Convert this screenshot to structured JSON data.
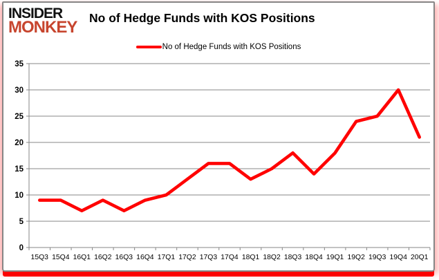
{
  "brand": {
    "line1": "INSIDER",
    "line2": "MONKEY"
  },
  "header": {
    "title": "No of Hedge Funds with KOS Positions"
  },
  "legend": {
    "label": "No of Hedge Funds with KOS Positions"
  },
  "chart_data": {
    "type": "line",
    "title": "No of Hedge Funds with KOS Positions",
    "categories": [
      "15Q3",
      "15Q4",
      "16Q1",
      "16Q2",
      "16Q3",
      "16Q4",
      "17Q1",
      "17Q2",
      "17Q3",
      "17Q4",
      "18Q1",
      "18Q2",
      "18Q3",
      "18Q4",
      "19Q1",
      "19Q2",
      "19Q3",
      "19Q4",
      "20Q1"
    ],
    "values": [
      9,
      9,
      7,
      9,
      7,
      9,
      10,
      13,
      16,
      16,
      13,
      15,
      18,
      14,
      18,
      24,
      25,
      30,
      21
    ],
    "xlabel": "",
    "ylabel": "",
    "ylim": [
      0,
      35
    ],
    "ytick_step": 5,
    "grid": true,
    "legend_position": "top",
    "legend_entries": [
      "No of Hedge Funds with KOS Positions"
    ]
  },
  "colors": {
    "series_line": "#ff0000",
    "gridline": "#878787",
    "axis": "#878787",
    "text": "#000000",
    "brand_black": "#111111",
    "brand_red": "#c7452e",
    "card_border": "#858585",
    "bottom_bar": "#fb0000"
  }
}
